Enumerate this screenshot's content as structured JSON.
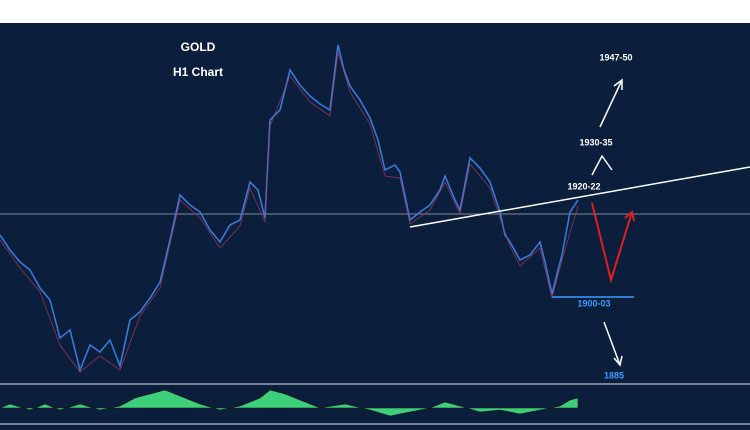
{
  "header": {
    "title": "GOLD",
    "subtitle": "H1 Chart"
  },
  "annotations": {
    "target_high": "1947-50",
    "target_mid": "1930-35",
    "resistance": "1920-22",
    "support": "1900-03",
    "target_low": "1885"
  }
}
